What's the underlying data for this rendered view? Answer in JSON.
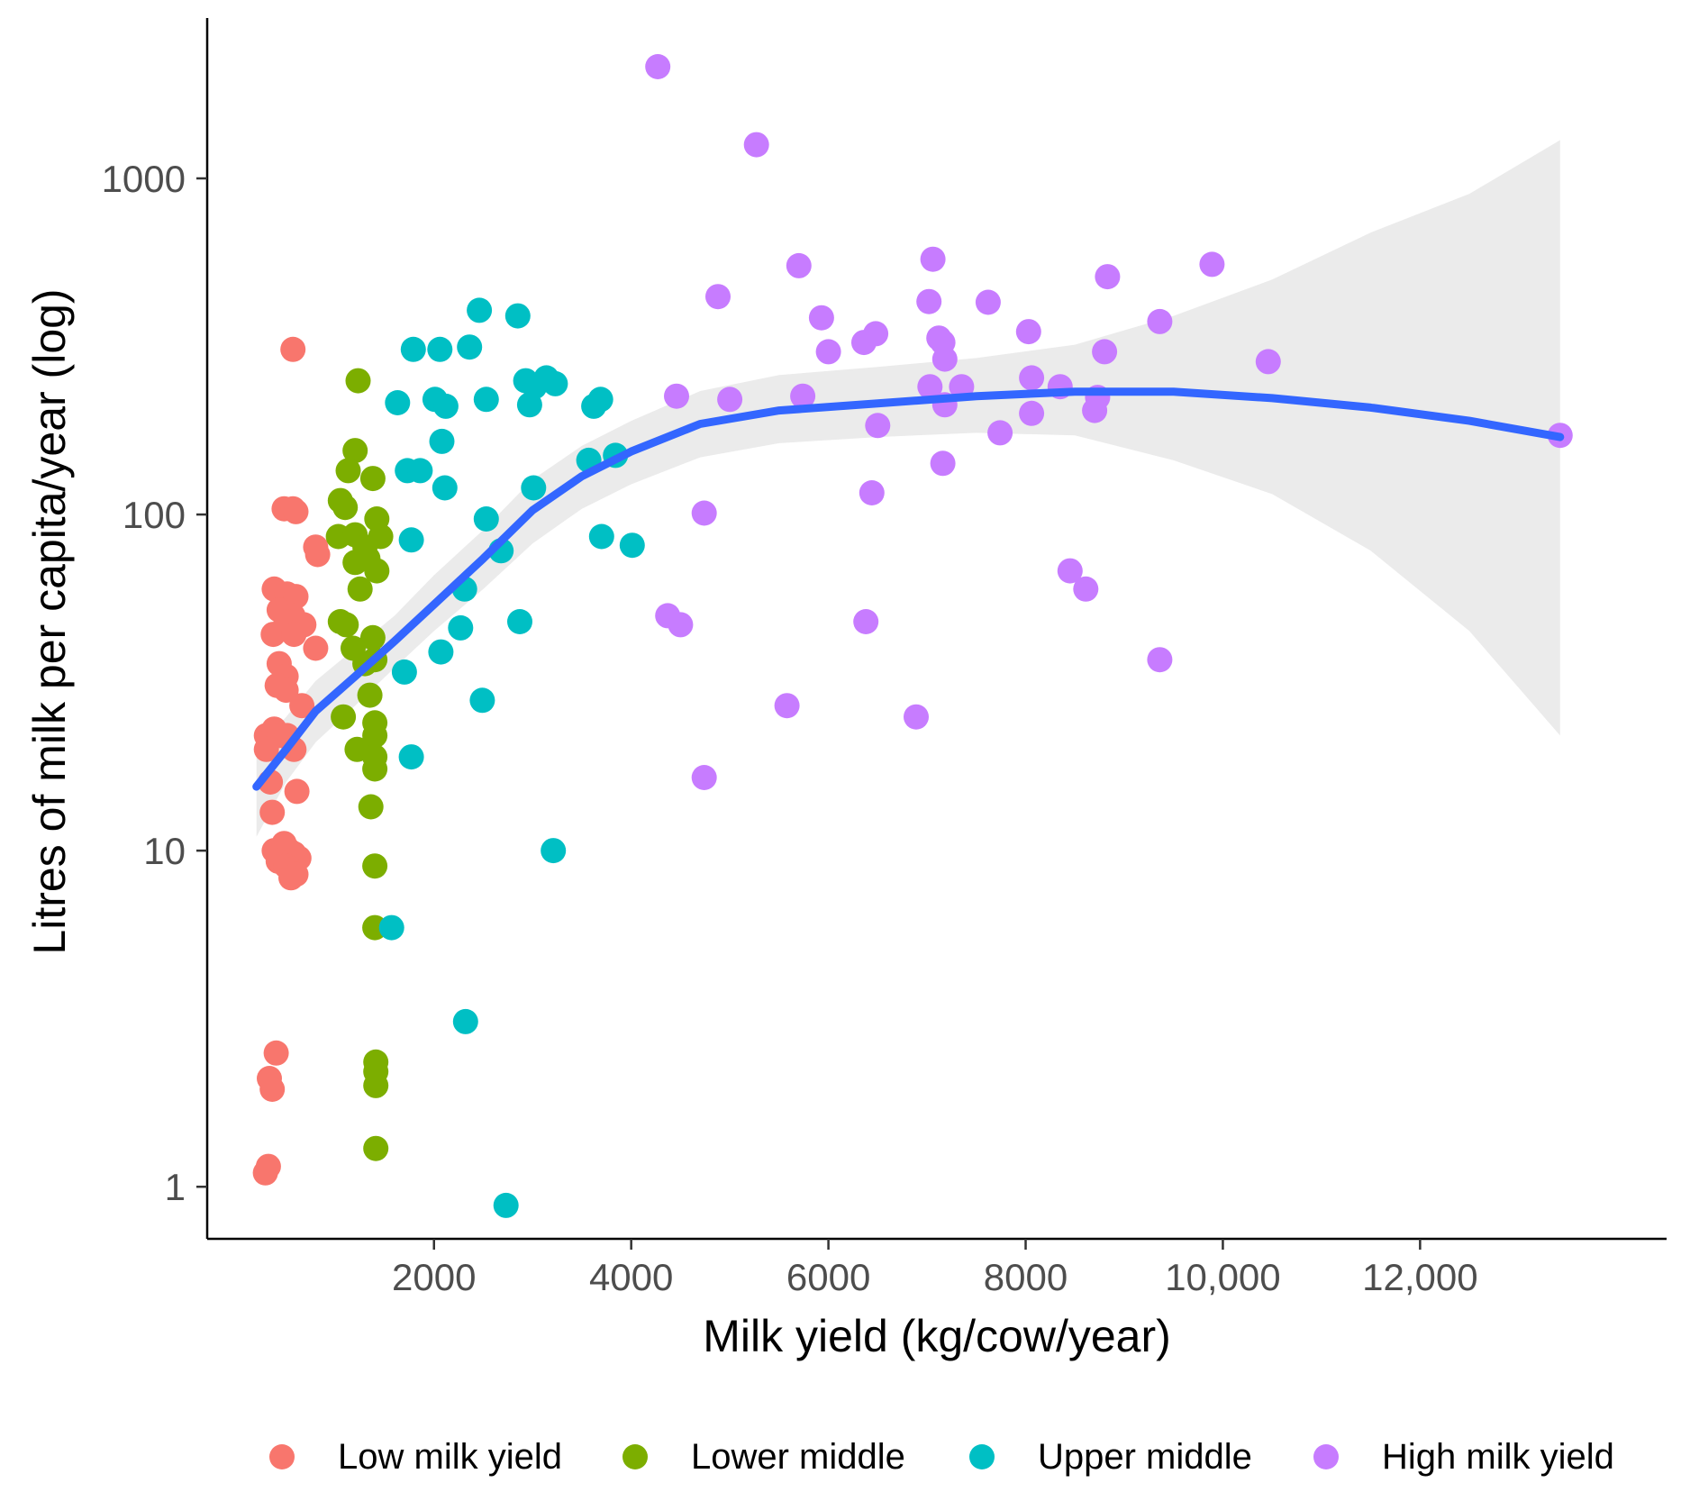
{
  "chart_data": {
    "type": "scatter",
    "title": "",
    "xlabel": "Milk yield (kg/cow/year)",
    "ylabel": "Litres of milk per capita/year (log)",
    "x_scale": "linear",
    "y_scale": "log10",
    "xlim": [
      -300,
      14500
    ],
    "ylim": [
      0.7,
      3000
    ],
    "x_ticks": [
      {
        "value": 2000,
        "label": "2000"
      },
      {
        "value": 4000,
        "label": "4000"
      },
      {
        "value": 6000,
        "label": "6000"
      },
      {
        "value": 8000,
        "label": "8000"
      },
      {
        "value": 10000,
        "label": "10,000"
      },
      {
        "value": 12000,
        "label": "12,000"
      }
    ],
    "y_ticks": [
      {
        "value": 1,
        "label": "1"
      },
      {
        "value": 10,
        "label": "10"
      },
      {
        "value": 100,
        "label": "100"
      },
      {
        "value": 1000,
        "label": "1000"
      }
    ],
    "grid": false,
    "legend_position": "bottom",
    "series": [
      {
        "name": "Low milk yield",
        "color": "#F8766D",
        "points": [
          [
            570,
            310
          ],
          [
            480,
            104
          ],
          [
            570,
            104
          ],
          [
            600,
            102
          ],
          [
            820,
            76
          ],
          [
            800,
            80
          ],
          [
            380,
            60
          ],
          [
            510,
            58
          ],
          [
            600,
            57
          ],
          [
            430,
            52
          ],
          [
            570,
            50
          ],
          [
            370,
            44
          ],
          [
            500,
            48
          ],
          [
            680,
            47
          ],
          [
            580,
            44
          ],
          [
            800,
            40
          ],
          [
            430,
            36
          ],
          [
            500,
            33
          ],
          [
            410,
            31
          ],
          [
            500,
            30
          ],
          [
            660,
            27
          ],
          [
            300,
            22
          ],
          [
            380,
            23
          ],
          [
            430,
            22
          ],
          [
            510,
            22
          ],
          [
            300,
            20
          ],
          [
            580,
            20
          ],
          [
            340,
            16
          ],
          [
            610,
            15
          ],
          [
            360,
            13
          ],
          [
            380,
            10
          ],
          [
            480,
            10.5
          ],
          [
            530,
            10
          ],
          [
            580,
            9.8
          ],
          [
            630,
            9.5
          ],
          [
            420,
            9.3
          ],
          [
            500,
            9
          ],
          [
            560,
            8.8
          ],
          [
            600,
            8.5
          ],
          [
            550,
            8.3
          ],
          [
            400,
            2.5
          ],
          [
            330,
            2.1
          ],
          [
            360,
            1.95
          ],
          [
            320,
            1.15
          ],
          [
            290,
            1.1
          ]
        ]
      },
      {
        "name": "Lower middle",
        "color": "#7CAE00",
        "points": [
          [
            1230,
            250
          ],
          [
            1200,
            155
          ],
          [
            1130,
            135
          ],
          [
            1380,
            128
          ],
          [
            1050,
            110
          ],
          [
            1100,
            105
          ],
          [
            1420,
            97
          ],
          [
            1460,
            86
          ],
          [
            1030,
            86
          ],
          [
            1200,
            87
          ],
          [
            1300,
            80
          ],
          [
            1330,
            74
          ],
          [
            1200,
            72
          ],
          [
            1420,
            68
          ],
          [
            1250,
            60
          ],
          [
            1050,
            48
          ],
          [
            1110,
            47
          ],
          [
            1380,
            43
          ],
          [
            1180,
            40
          ],
          [
            1400,
            37
          ],
          [
            1300,
            36
          ],
          [
            1350,
            29
          ],
          [
            1400,
            24
          ],
          [
            1080,
            25
          ],
          [
            1400,
            22
          ],
          [
            1220,
            20
          ],
          [
            1400,
            19
          ],
          [
            1400,
            17.5
          ],
          [
            1360,
            13.5
          ],
          [
            1400,
            9
          ],
          [
            1400,
            5.9
          ],
          [
            1410,
            2.35
          ],
          [
            1410,
            2.2
          ],
          [
            1410,
            2.0
          ],
          [
            1410,
            1.3
          ]
        ]
      },
      {
        "name": "Upper middle",
        "color": "#00BFC4",
        "points": [
          [
            2460,
            405
          ],
          [
            2850,
            390
          ],
          [
            1790,
            310
          ],
          [
            2060,
            310
          ],
          [
            2360,
            315
          ],
          [
            3140,
            255
          ],
          [
            3230,
            245
          ],
          [
            2930,
            250
          ],
          [
            3020,
            240
          ],
          [
            2010,
            220
          ],
          [
            2120,
            210
          ],
          [
            3690,
            220
          ],
          [
            3620,
            210
          ],
          [
            1630,
            215
          ],
          [
            2530,
            220
          ],
          [
            2970,
            212
          ],
          [
            2080,
            165
          ],
          [
            3570,
            145
          ],
          [
            3840,
            150
          ],
          [
            1730,
            135
          ],
          [
            1860,
            135
          ],
          [
            2110,
            120
          ],
          [
            3010,
            120
          ],
          [
            2530,
            97
          ],
          [
            2680,
            78
          ],
          [
            1770,
            84
          ],
          [
            3700,
            86
          ],
          [
            4010,
            81
          ],
          [
            2310,
            60
          ],
          [
            2270,
            46
          ],
          [
            2870,
            48
          ],
          [
            2070,
            39
          ],
          [
            1700,
            34
          ],
          [
            2490,
            28
          ],
          [
            1770,
            19
          ],
          [
            3210,
            10
          ],
          [
            1570,
            5.9
          ],
          [
            2320,
            3.1
          ],
          [
            2730,
            0.88
          ]
        ]
      },
      {
        "name": "High milk yield",
        "color": "#C77CFF",
        "points": [
          [
            4270,
            2150
          ],
          [
            5270,
            1260
          ],
          [
            7060,
            575
          ],
          [
            5700,
            550
          ],
          [
            9890,
            555
          ],
          [
            8830,
            510
          ],
          [
            4880,
            445
          ],
          [
            7020,
            430
          ],
          [
            7620,
            428
          ],
          [
            5930,
            385
          ],
          [
            9360,
            375
          ],
          [
            8030,
            350
          ],
          [
            6480,
            345
          ],
          [
            6360,
            325
          ],
          [
            7120,
            335
          ],
          [
            7160,
            325
          ],
          [
            6000,
            305
          ],
          [
            8800,
            305
          ],
          [
            7180,
            290
          ],
          [
            10460,
            285
          ],
          [
            8060,
            255
          ],
          [
            7030,
            240
          ],
          [
            8350,
            240
          ],
          [
            7350,
            240
          ],
          [
            4460,
            225
          ],
          [
            5000,
            220
          ],
          [
            5740,
            225
          ],
          [
            8730,
            223
          ],
          [
            7180,
            212
          ],
          [
            8060,
            200
          ],
          [
            8700,
            204
          ],
          [
            6500,
            184
          ],
          [
            7740,
            175
          ],
          [
            13420,
            172
          ],
          [
            7160,
            142
          ],
          [
            6440,
            116
          ],
          [
            4740,
            101
          ],
          [
            8450,
            68
          ],
          [
            8610,
            60
          ],
          [
            4370,
            50
          ],
          [
            4500,
            47
          ],
          [
            6380,
            48
          ],
          [
            9360,
            37
          ],
          [
            5580,
            27
          ],
          [
            6890,
            25
          ],
          [
            4740,
            16.5
          ]
        ]
      }
    ],
    "smooth": {
      "name": "loess fit",
      "color": "#3366FF",
      "band_color": "#EBEBEB",
      "points": [
        [
          200,
          15.5
        ],
        [
          500,
          20
        ],
        [
          800,
          26
        ],
        [
          1200,
          33
        ],
        [
          1600,
          42
        ],
        [
          2000,
          54
        ],
        [
          2500,
          74
        ],
        [
          3000,
          103
        ],
        [
          3500,
          130
        ],
        [
          4000,
          154
        ],
        [
          4700,
          186
        ],
        [
          5500,
          204
        ],
        [
          6500,
          214
        ],
        [
          7500,
          225
        ],
        [
          8500,
          232
        ],
        [
          9500,
          232
        ],
        [
          10500,
          222
        ],
        [
          11500,
          208
        ],
        [
          12500,
          190
        ],
        [
          13420,
          170
        ]
      ],
      "lower": [
        [
          200,
          11
        ],
        [
          500,
          16
        ],
        [
          800,
          21
        ],
        [
          1200,
          27
        ],
        [
          1600,
          35
        ],
        [
          2000,
          45
        ],
        [
          2500,
          60
        ],
        [
          3000,
          82
        ],
        [
          3500,
          104
        ],
        [
          4000,
          123
        ],
        [
          4700,
          148
        ],
        [
          5500,
          163
        ],
        [
          6500,
          170
        ],
        [
          7500,
          175
        ],
        [
          8500,
          172
        ],
        [
          9500,
          145
        ],
        [
          10500,
          115
        ],
        [
          11500,
          78
        ],
        [
          12500,
          45
        ],
        [
          13420,
          22
        ]
      ],
      "upper": [
        [
          200,
          20
        ],
        [
          500,
          25
        ],
        [
          800,
          32
        ],
        [
          1200,
          40
        ],
        [
          1600,
          50
        ],
        [
          2000,
          66
        ],
        [
          2500,
          90
        ],
        [
          3000,
          127
        ],
        [
          3500,
          160
        ],
        [
          4000,
          190
        ],
        [
          4700,
          233
        ],
        [
          5500,
          260
        ],
        [
          6500,
          275
        ],
        [
          7500,
          292
        ],
        [
          8500,
          320
        ],
        [
          9500,
          390
        ],
        [
          10500,
          500
        ],
        [
          11500,
          690
        ],
        [
          12500,
          900
        ],
        [
          13420,
          1300
        ]
      ]
    }
  }
}
